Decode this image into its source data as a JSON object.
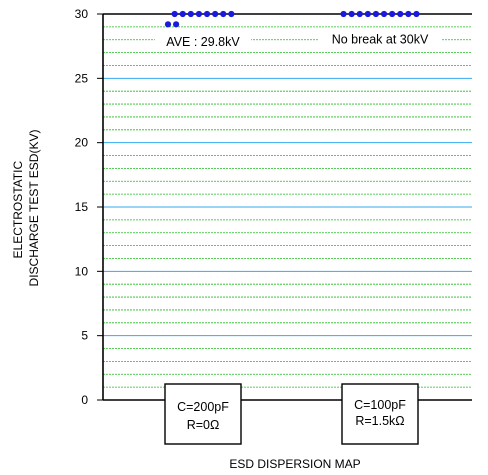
{
  "chart_data": {
    "type": "scatter",
    "title": "",
    "xlabel": "ESD DISPERSION MAP",
    "ylabel_lines": [
      "ELECTROSTATIC",
      "DISCHARGE TEST ESD(KV)"
    ],
    "ylim": [
      0,
      30
    ],
    "yticks": [
      0,
      5,
      10,
      15,
      20,
      25,
      30
    ],
    "grid": true,
    "conditions": [
      {
        "line1": "C=200pF",
        "line2": "R=0Ω"
      },
      {
        "line1": "C=100pF",
        "line2": "R=1.5kΩ"
      }
    ],
    "series": [
      {
        "condition": 0,
        "color": "#1a1adf",
        "points": [
          30,
          30,
          30,
          30,
          30,
          30,
          30,
          30,
          29.2,
          29.2
        ]
      },
      {
        "condition": 1,
        "color": "#1a1adf",
        "points": [
          30,
          30,
          30,
          30,
          30,
          30,
          30,
          30,
          30,
          30
        ]
      }
    ],
    "annotations": [
      {
        "text": "AVE : 29.8kV",
        "x": 0,
        "y": 27.5
      },
      {
        "text": "No break at 30kV",
        "x": 1,
        "y": 27.7
      }
    ],
    "colors": {
      "grid_major": "#33aaee",
      "grid_minor": "#22bb22",
      "axis": "#000000"
    }
  }
}
